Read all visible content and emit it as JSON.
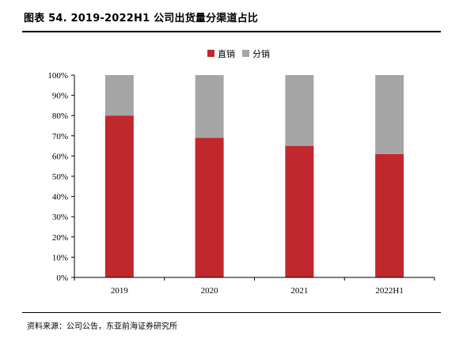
{
  "header": {
    "title": "图表 54. 2019-2022H1 公司出货量分渠道占比"
  },
  "footer": {
    "source": "资料来源：公司公告，东亚前海证券研究所"
  },
  "colors": {
    "direct": "#c0282e",
    "distribution": "#a6a6a6",
    "axis": "#000000"
  },
  "chart_data": {
    "type": "bar",
    "stacked": true,
    "categories": [
      "2019",
      "2020",
      "2021",
      "2022H1"
    ],
    "series": [
      {
        "name": "直销",
        "values": [
          80,
          69,
          65,
          61
        ]
      },
      {
        "name": "分销",
        "values": [
          20,
          31,
          35,
          39
        ]
      }
    ],
    "ylim": [
      0,
      100
    ],
    "yticks": [
      "0%",
      "10%",
      "20%",
      "30%",
      "40%",
      "50%",
      "60%",
      "70%",
      "80%",
      "90%",
      "100%"
    ],
    "legend_position": "top-center",
    "grid": false
  }
}
